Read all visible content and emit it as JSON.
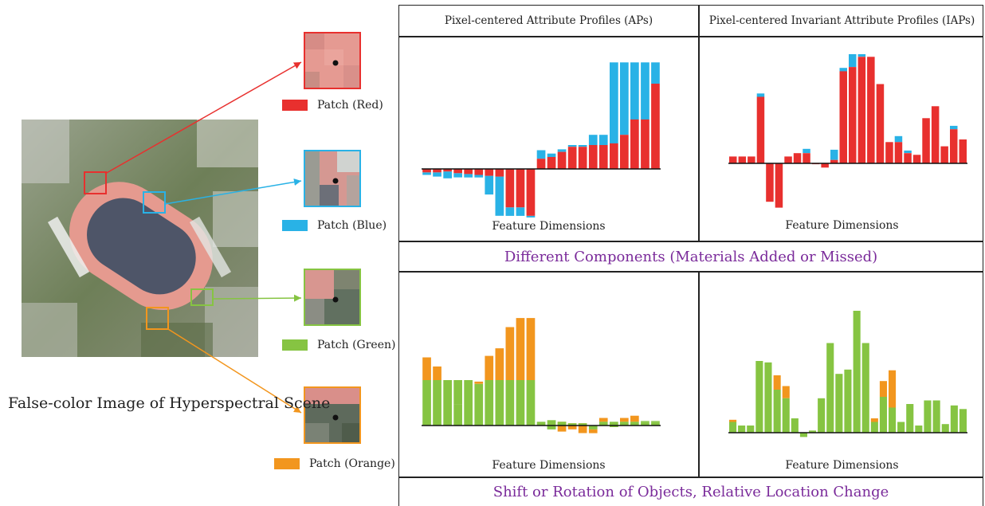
{
  "scene": {
    "caption": "False-color Image of Hyperspectral Scene"
  },
  "patches": [
    {
      "label": "Patch (Red)",
      "color": "#e8302e"
    },
    {
      "label": "Patch (Blue)",
      "color": "#29b2e6"
    },
    {
      "label": "Patch (Green)",
      "color": "#86c442"
    },
    {
      "label": "Patch (Orange)",
      "color": "#f2961e"
    }
  ],
  "columns": {
    "aps": "Pixel-centered Attribute Profiles (APs)",
    "iaps": "Pixel-centered Invariant Attribute Profiles (IAPs)"
  },
  "banners": {
    "row1": "Different Components (Materials Added or Missed)",
    "row2": "Shift or Rotation of Objects, Relative Location Change"
  },
  "axis_label": "Feature Dimensions",
  "chart_data": [
    {
      "type": "bar",
      "name": "APs - Red vs Blue",
      "top_color": "#29b2e6",
      "bottom_color": "#e8302e",
      "ylim": [
        -60,
        140
      ],
      "pairs": [
        [
          -4,
          -7
        ],
        [
          -4,
          -9
        ],
        [
          -3,
          -11
        ],
        [
          -5,
          -10
        ],
        [
          -6,
          -10
        ],
        [
          -7,
          -10
        ],
        [
          -8,
          -30
        ],
        [
          -9,
          -55
        ],
        [
          -45,
          -55
        ],
        [
          -45,
          -55
        ],
        [
          -55,
          -57
        ],
        [
          12,
          22
        ],
        [
          14,
          18
        ],
        [
          20,
          23
        ],
        [
          26,
          28
        ],
        [
          26,
          28
        ],
        [
          28,
          40
        ],
        [
          28,
          40
        ],
        [
          30,
          125
        ],
        [
          40,
          125
        ],
        [
          58,
          125
        ],
        [
          58,
          125
        ],
        [
          100,
          125
        ]
      ]
    },
    {
      "type": "bar",
      "name": "IAPs - Red vs Blue",
      "top_color": "#29b2e6",
      "bottom_color": "#e8302e",
      "ylim": [
        -60,
        140
      ],
      "pairs": [
        [
          8,
          8
        ],
        [
          8,
          8
        ],
        [
          8,
          8
        ],
        [
          78,
          82
        ],
        [
          -45,
          -45
        ],
        [
          -52,
          -52
        ],
        [
          8,
          8
        ],
        [
          12,
          12
        ],
        [
          12,
          17
        ],
        [
          -1,
          -1
        ],
        [
          -5,
          -5
        ],
        [
          4,
          16
        ],
        [
          108,
          112
        ],
        [
          113,
          128
        ],
        [
          125,
          128
        ],
        [
          125,
          125
        ],
        [
          93,
          93
        ],
        [
          25,
          25
        ],
        [
          25,
          32
        ],
        [
          12,
          15
        ],
        [
          10,
          10
        ],
        [
          53,
          53
        ],
        [
          67,
          67
        ],
        [
          20,
          20
        ],
        [
          40,
          44
        ],
        [
          28,
          28
        ]
      ]
    },
    {
      "type": "bar",
      "name": "APs - Green vs Orange",
      "top_color": "#f2961e",
      "bottom_color": "#86c442",
      "ylim": [
        -40,
        120
      ],
      "pairs": [
        [
          60,
          90
        ],
        [
          60,
          78
        ],
        [
          60,
          50
        ],
        [
          60,
          28
        ],
        [
          60,
          60
        ],
        [
          55,
          58
        ],
        [
          60,
          92
        ],
        [
          60,
          102
        ],
        [
          60,
          130
        ],
        [
          60,
          142
        ],
        [
          60,
          142
        ],
        [
          5,
          5
        ],
        [
          7,
          -5
        ],
        [
          5,
          -8
        ],
        [
          3,
          -5
        ],
        [
          3,
          -10
        ],
        [
          -5,
          -10
        ],
        [
          5,
          10
        ],
        [
          5,
          -2
        ],
        [
          5,
          10
        ],
        [
          5,
          13
        ],
        [
          6,
          5
        ],
        [
          6,
          5
        ]
      ]
    },
    {
      "type": "bar",
      "name": "IAPs - Green vs Orange",
      "top_color": "#f2961e",
      "bottom_color": "#86c442",
      "ylim": [
        -40,
        120
      ],
      "pairs": [
        [
          15,
          18
        ],
        [
          10,
          10
        ],
        [
          10,
          10
        ],
        [
          100,
          100
        ],
        [
          98,
          98
        ],
        [
          60,
          80
        ],
        [
          48,
          65
        ],
        [
          20,
          20
        ],
        [
          -6,
          -6
        ],
        [
          3,
          3
        ],
        [
          48,
          48
        ],
        [
          125,
          125
        ],
        [
          82,
          82
        ],
        [
          88,
          88
        ],
        [
          170,
          170
        ],
        [
          125,
          125
        ],
        [
          15,
          20
        ],
        [
          50,
          72
        ],
        [
          35,
          87
        ],
        [
          15,
          15
        ],
        [
          40,
          40
        ],
        [
          10,
          10
        ],
        [
          45,
          45
        ],
        [
          45,
          45
        ],
        [
          12,
          12
        ],
        [
          38,
          38
        ],
        [
          33,
          33
        ]
      ]
    }
  ]
}
